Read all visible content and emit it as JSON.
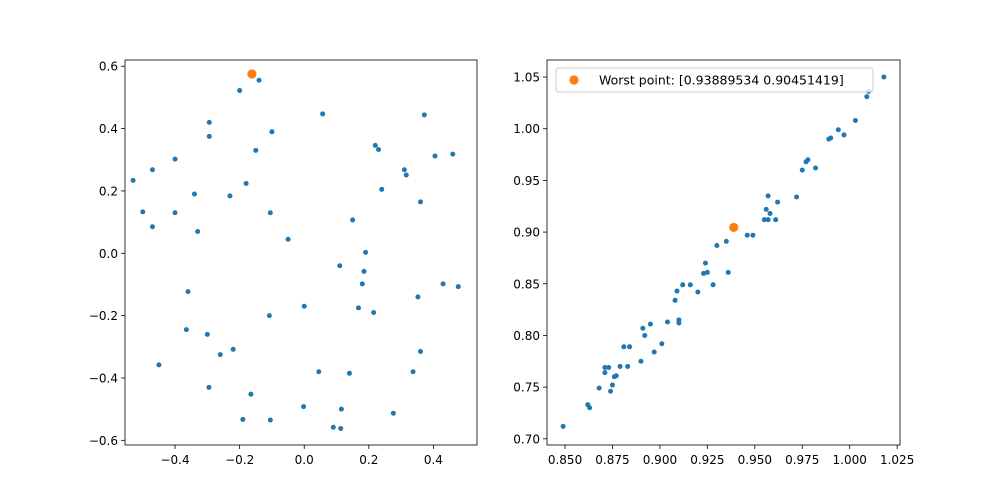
{
  "colors": {
    "series": "#1f77b4",
    "highlight": "#ff7f0e"
  },
  "chart_data": [
    {
      "type": "scatter",
      "title": "",
      "xlabel": "",
      "ylabel": "",
      "xlim": [
        -0.555,
        0.535
      ],
      "ylim": [
        -0.615,
        0.62
      ],
      "x_ticks": [
        -0.4,
        -0.2,
        0.0,
        0.2,
        0.4
      ],
      "x_tick_labels": [
        "−0.4",
        "−0.2",
        "0.0",
        "0.2",
        "0.4"
      ],
      "y_ticks": [
        -0.6,
        -0.4,
        -0.2,
        0.0,
        0.2,
        0.4,
        0.6
      ],
      "y_tick_labels": [
        "−0.6",
        "−0.4",
        "−0.2",
        "0.0",
        "0.2",
        "0.4",
        "0.6"
      ],
      "grid": false,
      "series": [
        {
          "color": "#1f77b4",
          "points": [
            [
              -0.14,
              0.555
            ],
            [
              -0.2,
              0.522
            ],
            [
              0.057,
              0.447
            ],
            [
              0.372,
              0.444
            ],
            [
              -0.294,
              0.42
            ],
            [
              -0.1,
              0.39
            ],
            [
              -0.294,
              0.375
            ],
            [
              0.22,
              0.346
            ],
            [
              0.23,
              0.333
            ],
            [
              -0.15,
              0.33
            ],
            [
              0.405,
              0.312
            ],
            [
              0.46,
              0.318
            ],
            [
              -0.4,
              0.302
            ],
            [
              -0.47,
              0.268
            ],
            [
              0.31,
              0.268
            ],
            [
              0.316,
              0.251
            ],
            [
              -0.53,
              0.234
            ],
            [
              -0.18,
              0.224
            ],
            [
              0.24,
              0.205
            ],
            [
              -0.34,
              0.19
            ],
            [
              -0.23,
              0.184
            ],
            [
              0.36,
              0.165
            ],
            [
              -0.5,
              0.133
            ],
            [
              -0.4,
              0.13
            ],
            [
              -0.105,
              0.13
            ],
            [
              0.15,
              0.107
            ],
            [
              -0.47,
              0.085
            ],
            [
              -0.33,
              0.07
            ],
            [
              -0.05,
              0.045
            ],
            [
              0.19,
              0.003
            ],
            [
              0.11,
              -0.04
            ],
            [
              0.185,
              -0.058
            ],
            [
              0.43,
              -0.098
            ],
            [
              0.18,
              -0.098
            ],
            [
              0.477,
              -0.107
            ],
            [
              -0.36,
              -0.123
            ],
            [
              0.352,
              -0.14
            ],
            [
              0.0,
              -0.17
            ],
            [
              0.168,
              -0.175
            ],
            [
              0.215,
              -0.19
            ],
            [
              -0.108,
              -0.2
            ],
            [
              -0.365,
              -0.245
            ],
            [
              -0.3,
              -0.26
            ],
            [
              -0.22,
              -0.308
            ],
            [
              -0.26,
              -0.325
            ],
            [
              0.36,
              -0.315
            ],
            [
              -0.45,
              -0.358
            ],
            [
              0.045,
              -0.38
            ],
            [
              0.14,
              -0.385
            ],
            [
              0.337,
              -0.38
            ],
            [
              -0.295,
              -0.43
            ],
            [
              -0.165,
              -0.452
            ],
            [
              -0.002,
              -0.492
            ],
            [
              0.115,
              -0.5
            ],
            [
              0.276,
              -0.513
            ],
            [
              -0.19,
              -0.533
            ],
            [
              -0.105,
              -0.535
            ],
            [
              0.09,
              -0.558
            ],
            [
              0.113,
              -0.562
            ]
          ]
        },
        {
          "color": "#ff7f0e",
          "points": [
            [
              -0.162,
              0.575
            ]
          ]
        }
      ]
    },
    {
      "type": "scatter",
      "title": "",
      "xlabel": "",
      "ylabel": "",
      "xlim": [
        0.8405,
        1.0265
      ],
      "ylim": [
        0.694,
        1.0665
      ],
      "x_ticks": [
        0.85,
        0.875,
        0.9,
        0.925,
        0.95,
        0.975,
        1.0,
        1.025
      ],
      "x_tick_labels": [
        "0.850",
        "0.875",
        "0.900",
        "0.925",
        "0.950",
        "0.975",
        "1.000",
        "1.025"
      ],
      "y_ticks": [
        0.7,
        0.75,
        0.8,
        0.85,
        0.9,
        0.95,
        1.0,
        1.05
      ],
      "y_tick_labels": [
        "0.70",
        "0.75",
        "0.80",
        "0.85",
        "0.90",
        "0.95",
        "1.00",
        "1.05"
      ],
      "grid": false,
      "legend": {
        "position": "top-left",
        "entries": [
          "Worst point: [0.93889534 0.90451419]"
        ]
      },
      "series": [
        {
          "color": "#1f77b4",
          "points": [
            [
              0.849,
              0.712
            ],
            [
              0.862,
              0.733
            ],
            [
              0.863,
              0.73
            ],
            [
              0.868,
              0.749
            ],
            [
              0.871,
              0.769
            ],
            [
              0.871,
              0.764
            ],
            [
              0.873,
              0.769
            ],
            [
              0.874,
              0.746
            ],
            [
              0.875,
              0.752
            ],
            [
              0.876,
              0.76
            ],
            [
              0.877,
              0.761
            ],
            [
              0.879,
              0.77
            ],
            [
              0.881,
              0.789
            ],
            [
              0.883,
              0.77
            ],
            [
              0.884,
              0.789
            ],
            [
              0.89,
              0.775
            ],
            [
              0.891,
              0.807
            ],
            [
              0.892,
              0.8
            ],
            [
              0.895,
              0.811
            ],
            [
              0.897,
              0.784
            ],
            [
              0.901,
              0.792
            ],
            [
              0.904,
              0.813
            ],
            [
              0.908,
              0.834
            ],
            [
              0.909,
              0.843
            ],
            [
              0.91,
              0.815
            ],
            [
              0.91,
              0.812
            ],
            [
              0.912,
              0.849
            ],
            [
              0.916,
              0.849
            ],
            [
              0.92,
              0.842
            ],
            [
              0.923,
              0.86
            ],
            [
              0.924,
              0.87
            ],
            [
              0.925,
              0.861
            ],
            [
              0.928,
              0.849
            ],
            [
              0.93,
              0.887
            ],
            [
              0.935,
              0.891
            ],
            [
              0.936,
              0.861
            ],
            [
              0.946,
              0.897
            ],
            [
              0.949,
              0.897
            ],
            [
              0.955,
              0.912
            ],
            [
              0.956,
              0.922
            ],
            [
              0.957,
              0.912
            ],
            [
              0.957,
              0.935
            ],
            [
              0.958,
              0.918
            ],
            [
              0.961,
              0.912
            ],
            [
              0.962,
              0.929
            ],
            [
              0.972,
              0.934
            ],
            [
              0.975,
              0.96
            ],
            [
              0.977,
              0.968
            ],
            [
              0.978,
              0.97
            ],
            [
              0.982,
              0.962
            ],
            [
              0.989,
              0.99
            ],
            [
              0.99,
              0.991
            ],
            [
              0.994,
              0.999
            ],
            [
              0.997,
              0.994
            ],
            [
              1.003,
              1.008
            ],
            [
              1.009,
              1.031
            ],
            [
              1.01,
              1.036
            ],
            [
              1.018,
              1.05
            ]
          ]
        },
        {
          "name": "Worst point: [0.93889534 0.90451419]",
          "color": "#ff7f0e",
          "points": [
            [
              0.93889534,
              0.90451419
            ]
          ]
        }
      ]
    }
  ]
}
